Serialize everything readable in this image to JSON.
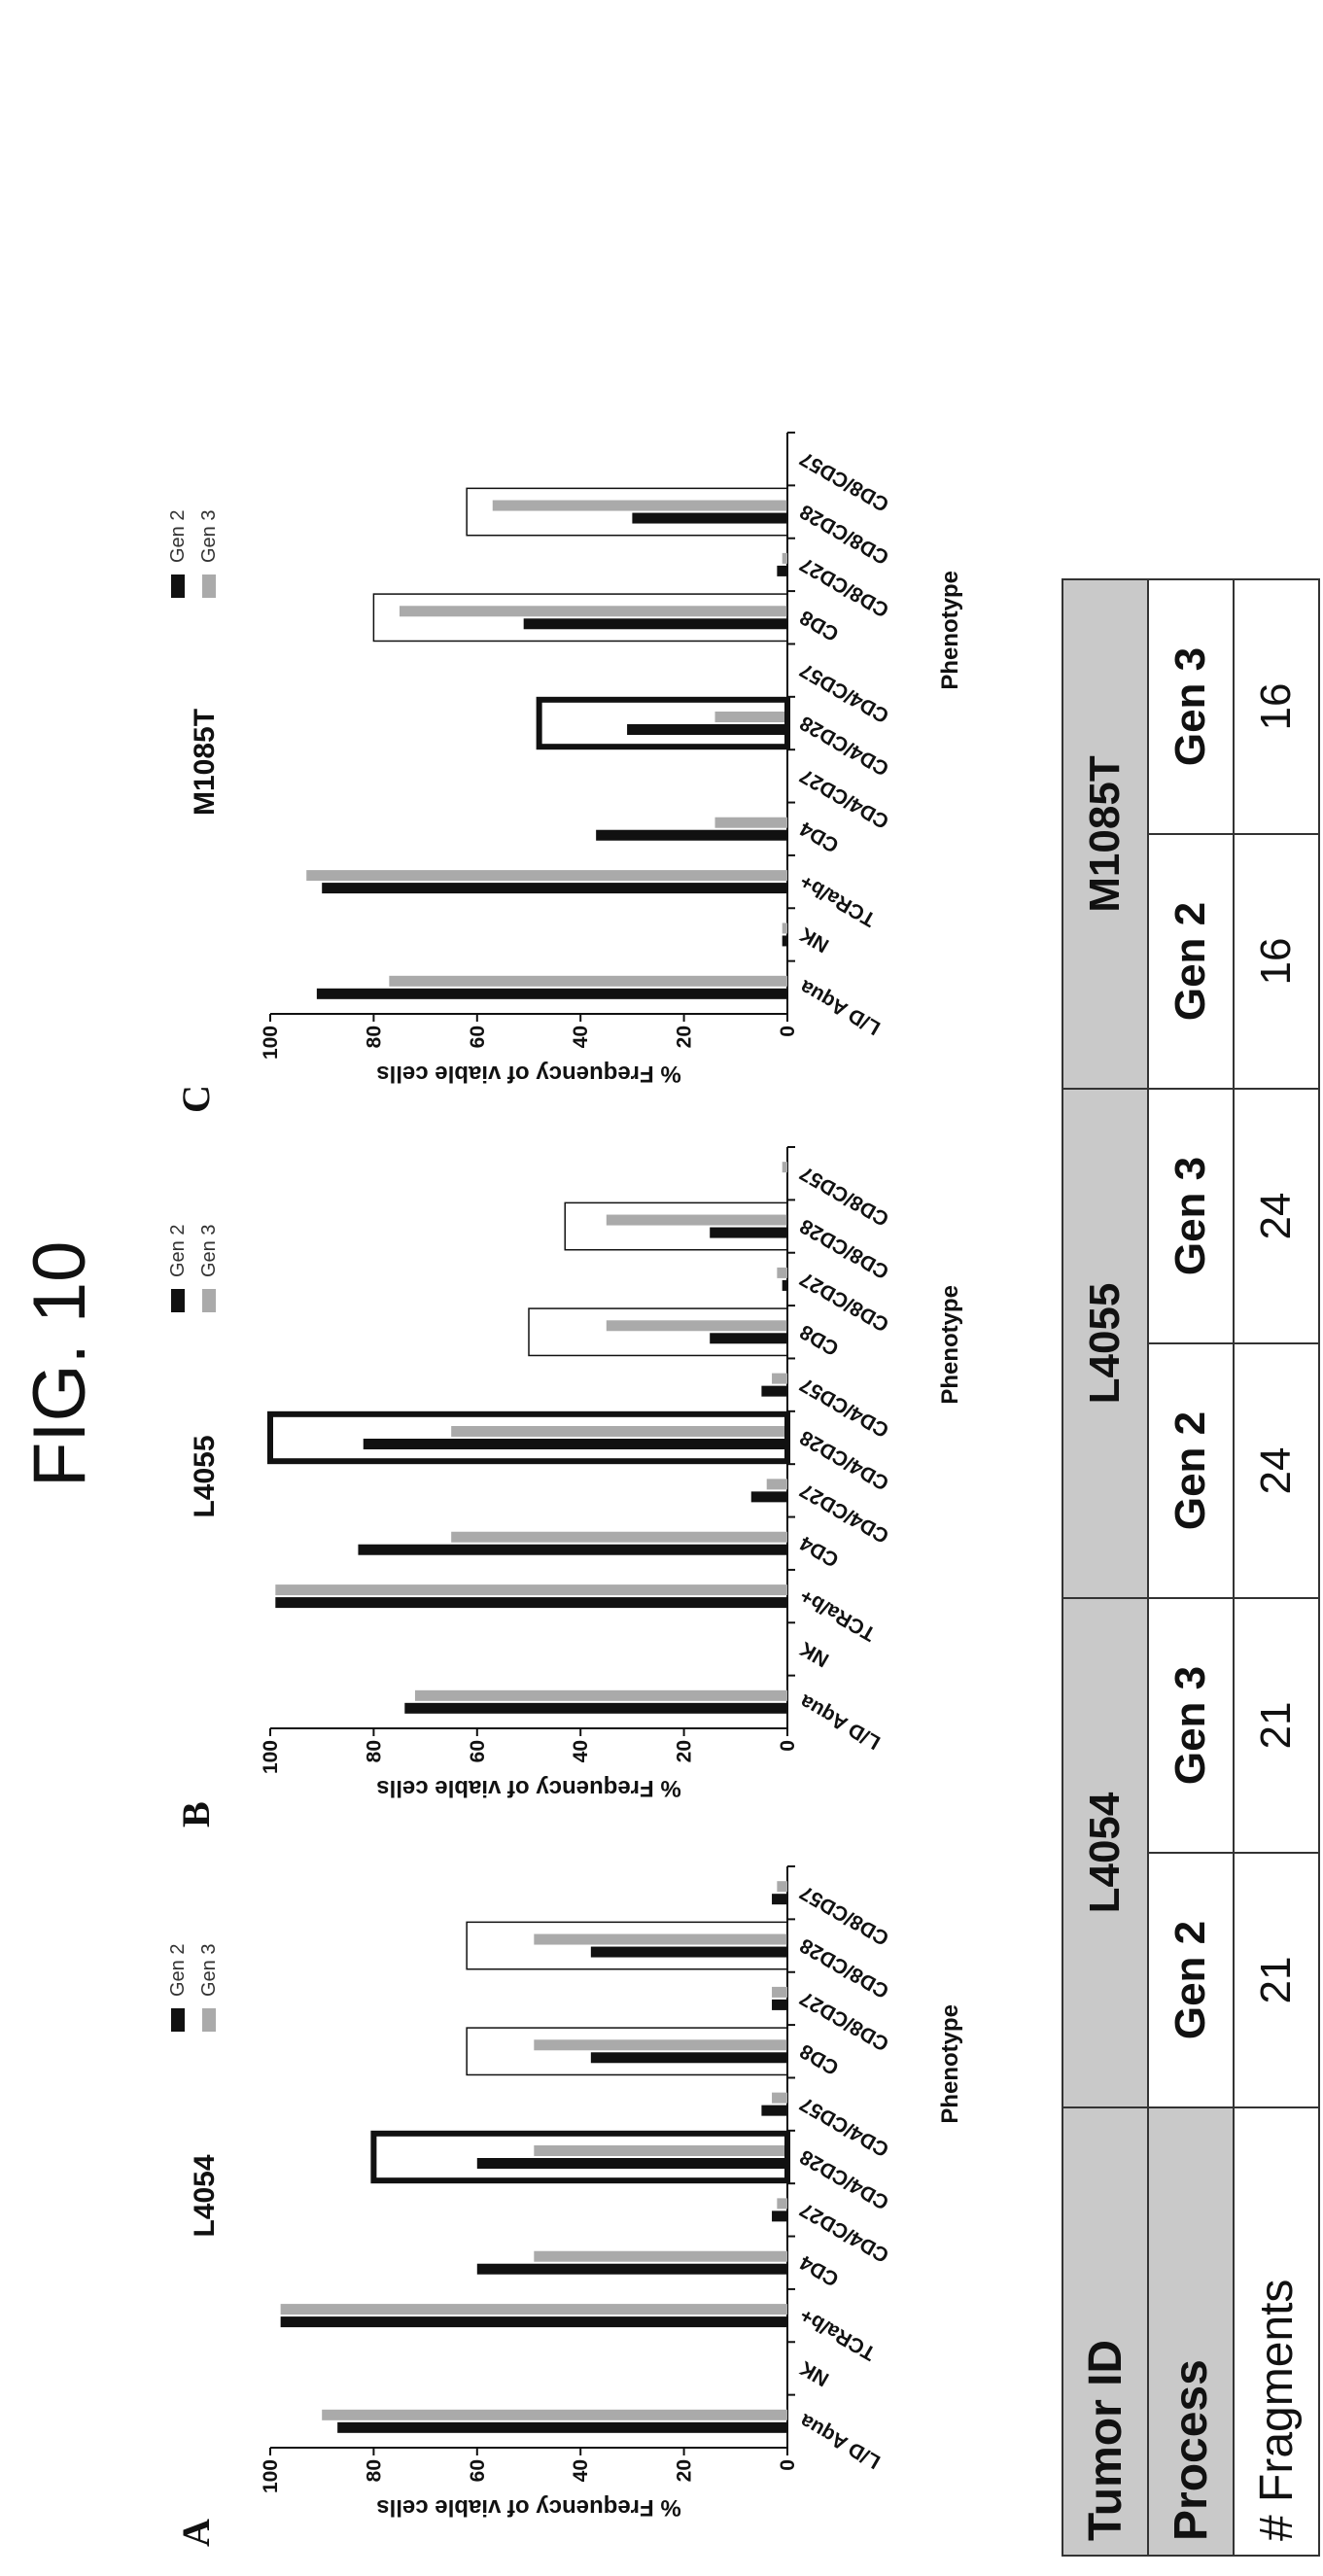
{
  "figure_title": "FIG. 10",
  "panels": [
    {
      "letter": "A"
    },
    {
      "letter": "B"
    },
    {
      "letter": "C"
    }
  ],
  "chart_data": [
    {
      "type": "bar",
      "title": "L4054",
      "xlabel": "Phenotype",
      "ylabel": "% Frequency of viable cells",
      "ylim": [
        0,
        100
      ],
      "yticks": [
        "0",
        "20",
        "40",
        "60",
        "80",
        "100"
      ],
      "categories": [
        "L/D Aqua",
        "NK",
        "TCRa/b+",
        "CD4",
        "CD4/CD27",
        "CD4/CD28",
        "CD4/CD57",
        "CD8",
        "CD8/CD27",
        "CD8/CD28",
        "CD8/CD57"
      ],
      "series": [
        {
          "name": "Gen 2",
          "color": "#111111",
          "values": [
            87,
            0,
            98,
            60,
            3,
            60,
            5,
            38,
            3,
            38,
            3
          ]
        },
        {
          "name": "Gen 3",
          "color": "#aaaaaa",
          "values": [
            90,
            0,
            98,
            49,
            2,
            49,
            3,
            49,
            3,
            49,
            2
          ]
        }
      ],
      "highlight_boxes": [
        {
          "from": "CD4/CD28",
          "to": "CD4/CD28",
          "top": 80,
          "style": "thick"
        },
        {
          "from": "CD8",
          "to": "CD8",
          "top": 62,
          "style": "thin"
        },
        {
          "from": "CD8/CD28",
          "to": "CD8/CD28",
          "top": 62,
          "style": "thin"
        }
      ]
    },
    {
      "type": "bar",
      "title": "L4055",
      "xlabel": "Phenotype",
      "ylabel": "% Frequency of viable cells",
      "ylim": [
        0,
        100
      ],
      "yticks": [
        "0",
        "20",
        "40",
        "60",
        "80",
        "100"
      ],
      "categories": [
        "L/D Aqua",
        "NK",
        "TCRa/b+",
        "CD4",
        "CD4/CD27",
        "CD4/CD28",
        "CD4/CD57",
        "CD8",
        "CD8/CD27",
        "CD8/CD28",
        "CD8/CD57"
      ],
      "series": [
        {
          "name": "Gen 2",
          "color": "#111111",
          "values": [
            74,
            0,
            99,
            83,
            7,
            82,
            5,
            15,
            1,
            15,
            0
          ]
        },
        {
          "name": "Gen 3",
          "color": "#aaaaaa",
          "values": [
            72,
            0,
            99,
            65,
            4,
            65,
            3,
            35,
            2,
            35,
            1
          ]
        }
      ],
      "highlight_boxes": [
        {
          "from": "CD4/CD28",
          "to": "CD4/CD28",
          "top": 100,
          "style": "thick"
        },
        {
          "from": "CD8",
          "to": "CD8",
          "top": 50,
          "style": "thin"
        },
        {
          "from": "CD8/CD28",
          "to": "CD8/CD28",
          "top": 43,
          "style": "thin"
        }
      ]
    },
    {
      "type": "bar",
      "title": "M1085T",
      "xlabel": "Phenotype",
      "ylabel": "% Frequency of viable cells",
      "ylim": [
        0,
        100
      ],
      "yticks": [
        "0",
        "20",
        "40",
        "60",
        "80",
        "100"
      ],
      "categories": [
        "L/D Aqua",
        "NK",
        "TCRa/b+",
        "CD4",
        "CD4/CD27",
        "CD4/CD28",
        "CD4/CD57",
        "CD8",
        "CD8/CD27",
        "CD8/CD28",
        "CD8/CD57"
      ],
      "series": [
        {
          "name": "Gen 2",
          "color": "#111111",
          "values": [
            91,
            1,
            90,
            37,
            0,
            31,
            0,
            51,
            2,
            30,
            0
          ]
        },
        {
          "name": "Gen 3",
          "color": "#aaaaaa",
          "values": [
            77,
            1,
            93,
            14,
            0,
            14,
            0,
            75,
            1,
            57,
            0
          ]
        }
      ],
      "highlight_boxes": [
        {
          "from": "CD4/CD28",
          "to": "CD4/CD28",
          "top": 48,
          "style": "thick"
        },
        {
          "from": "CD8",
          "to": "CD8",
          "top": 80,
          "style": "thin"
        },
        {
          "from": "CD8/CD28",
          "to": "CD8/CD28",
          "top": 62,
          "style": "thin"
        }
      ]
    }
  ],
  "table": {
    "tumor_id_label": "Tumor ID",
    "process_label": "Process",
    "fragments_label": "# Fragments",
    "tumors": [
      {
        "id": "L4054",
        "gen2_label": "Gen 2",
        "gen3_label": "Gen 3",
        "gen2_fragments": "21",
        "gen3_fragments": "21"
      },
      {
        "id": "L4055",
        "gen2_label": "Gen 2",
        "gen3_label": "Gen 3",
        "gen2_fragments": "24",
        "gen3_fragments": "24"
      },
      {
        "id": "M1085T",
        "gen2_label": "Gen 2",
        "gen3_label": "Gen 3",
        "gen2_fragments": "16",
        "gen3_fragments": "16"
      }
    ]
  }
}
